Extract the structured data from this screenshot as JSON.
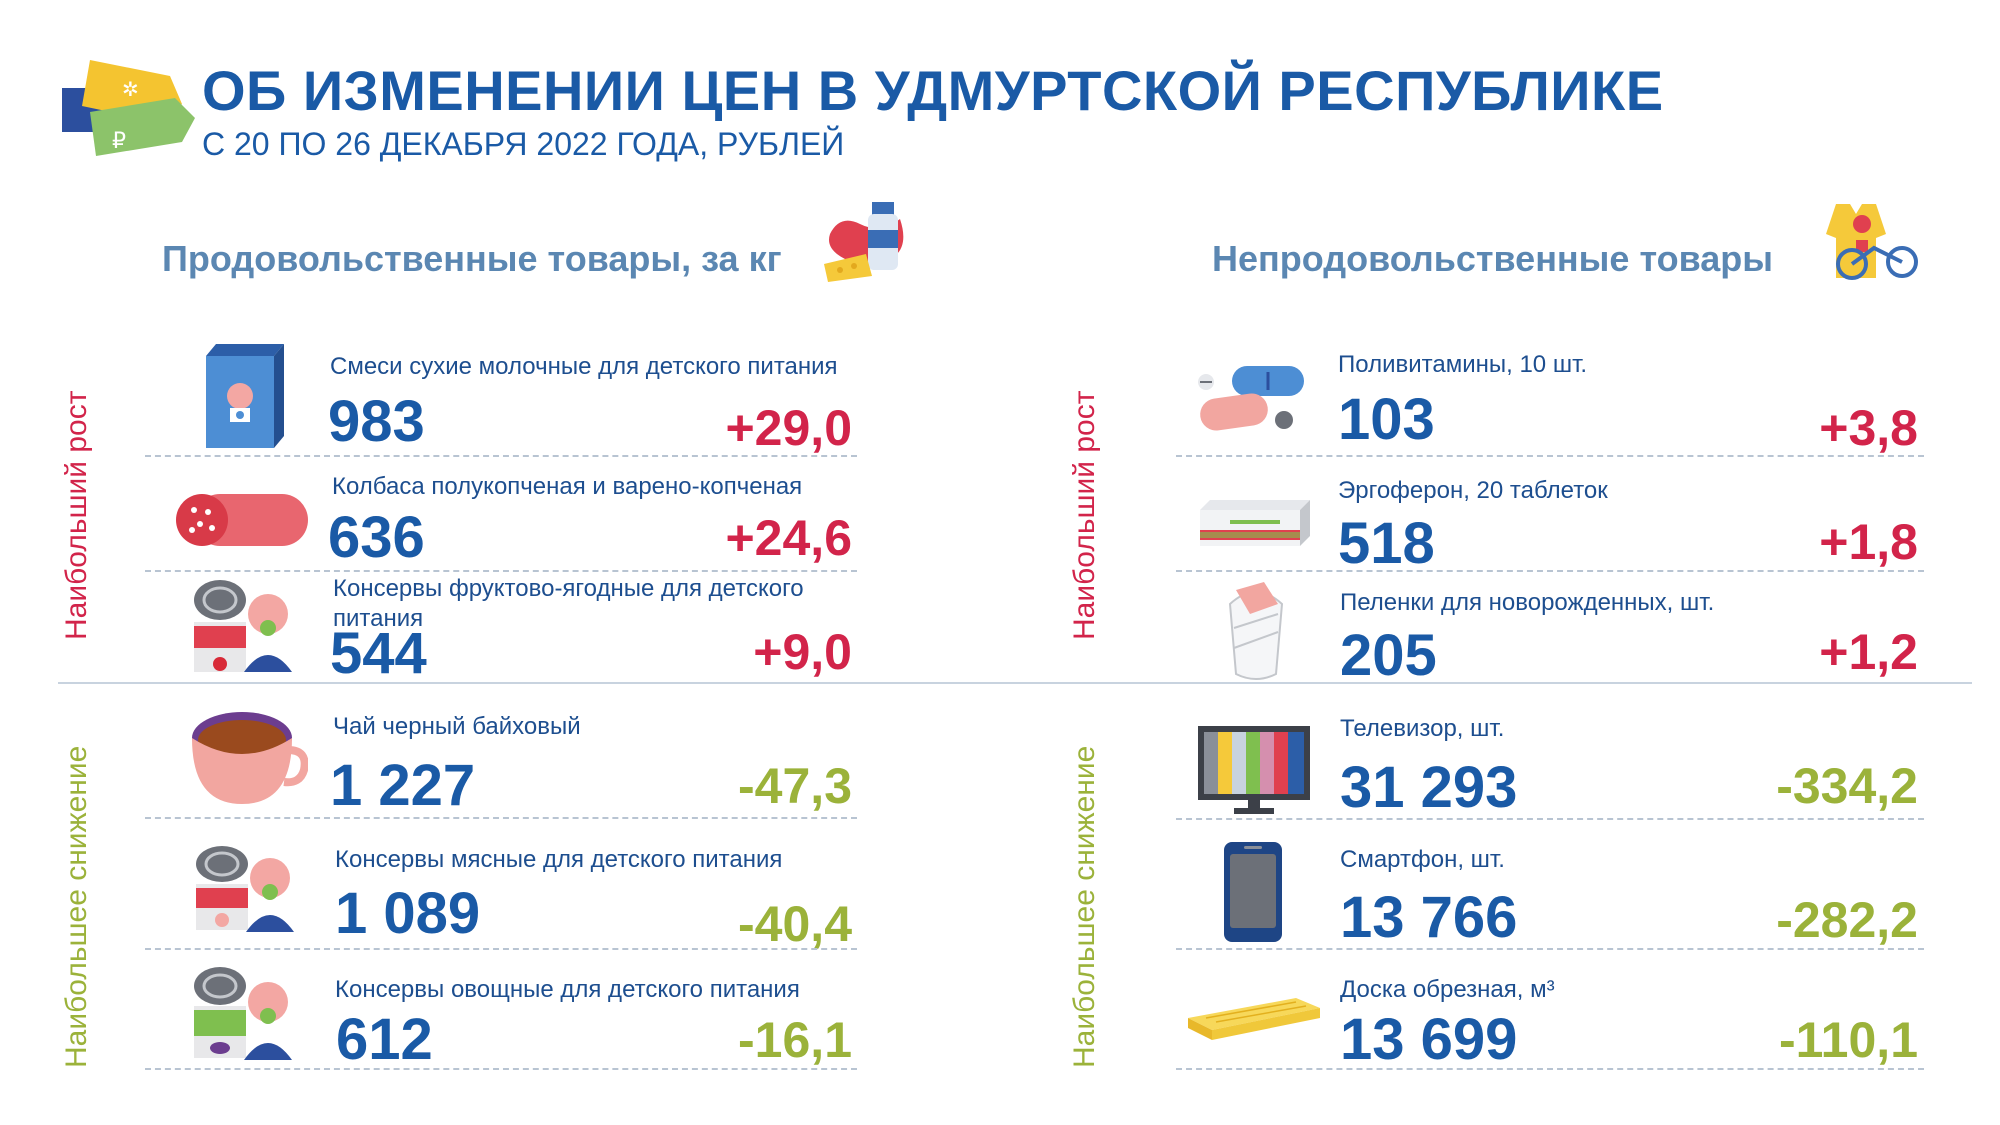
{
  "header": {
    "title": "ОБ ИЗМЕНЕНИИ ЦЕН В УДМУРТСКОЙ РЕСПУБЛИКЕ",
    "subtitle": "С 20 ПО 26 ДЕКАБРЯ 2022 ГОДА, РУБЛЕЙ"
  },
  "sections": {
    "food_title": "Продовольственные товары, за кг",
    "nonfood_title": "Непродовольственные товары",
    "label_up": "Наибольший рост",
    "label_down": "Наибольшее снижение"
  },
  "food": [
    {
      "name": "Смеси сухие молочные для детского питания",
      "price": "983",
      "change": "+29,0",
      "icon": "baby-formula-icon"
    },
    {
      "name": "Колбаса полукопченая и варено-копченая",
      "price": "636",
      "change": "+24,6",
      "icon": "sausage-icon"
    },
    {
      "name": "Консервы фруктово-ягодные для детского питания",
      "price": "544",
      "change": "+9,0",
      "icon": "baby-food-can-icon"
    },
    {
      "name": "Чай черный байховый",
      "price": "1 227",
      "change": "-47,3",
      "icon": "tea-cup-icon"
    },
    {
      "name": "Консервы мясные для детского питания",
      "price": "1 089",
      "change": "-40,4",
      "icon": "baby-food-can-icon"
    },
    {
      "name": "Консервы овощные для детского питания",
      "price": "612",
      "change": "-16,1",
      "icon": "baby-food-can-icon"
    }
  ],
  "nonfood": [
    {
      "name": "Поливитамины, 10 шт.",
      "price": "103",
      "change": "+3,8",
      "icon": "pills-icon"
    },
    {
      "name": "Эргоферон, 20 таблеток",
      "price": "518",
      "change": "+1,8",
      "icon": "medicine-box-icon"
    },
    {
      "name": "Пеленки для новорожденных, шт.",
      "price": "205",
      "change": "+1,2",
      "icon": "swaddle-icon"
    },
    {
      "name": "Телевизор, шт.",
      "price": "31 293",
      "change": "-334,2",
      "icon": "tv-icon"
    },
    {
      "name": "Смартфон, шт.",
      "price": "13 766",
      "change": "-282,2",
      "icon": "smartphone-icon"
    },
    {
      "name": "Доска обрезная, м³",
      "price": "13 699",
      "change": "-110,1",
      "icon": "lumber-board-icon"
    }
  ],
  "colors": {
    "title": "#1a5aa6",
    "increase": "#d2244a",
    "decrease": "#9bb23a",
    "section": "#5b87b2"
  }
}
